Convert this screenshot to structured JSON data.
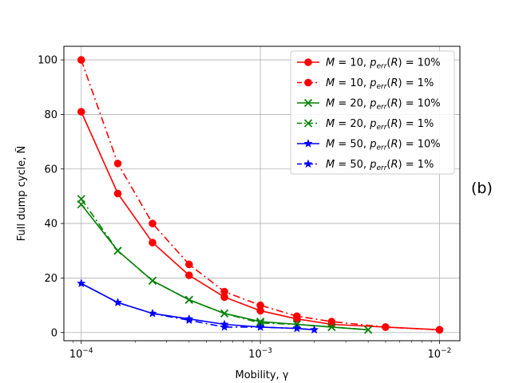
{
  "chart_data": {
    "type": "line",
    "xlabel": "Mobility, γ",
    "ylabel": "Full dump cycle, Ñ",
    "xscale": "log",
    "xlim": [
      8e-05,
      0.013
    ],
    "ylim": [
      -3,
      105
    ],
    "yticks": [
      0,
      20,
      40,
      60,
      80,
      100
    ],
    "xticks": [
      {
        "value": 0.0001,
        "base": "10",
        "exp": "−4"
      },
      {
        "value": 0.001,
        "base": "10",
        "exp": "−3"
      },
      {
        "value": 0.01,
        "base": "10",
        "exp": "−2"
      }
    ],
    "grid": true,
    "legend_position": "top-right",
    "panel_label": "(b)",
    "series": [
      {
        "name": "M = 10, p_err(R) = 10%",
        "legend": {
          "M": "10",
          "p": "10%"
        },
        "color": "#ff0000",
        "marker": "circle",
        "linestyle": "solid",
        "x": [
          0.0001,
          0.00016,
          0.00025,
          0.0004,
          0.00063,
          0.001,
          0.0016,
          0.0025,
          0.005,
          0.01
        ],
        "y": [
          81,
          51,
          33,
          21,
          13,
          8,
          5,
          3,
          2,
          1
        ]
      },
      {
        "name": "M = 10, p_err(R) = 1%",
        "legend": {
          "M": "10",
          "p": "1%"
        },
        "color": "#ff0000",
        "marker": "circle",
        "linestyle": "dashdot",
        "x": [
          0.0001,
          0.00016,
          0.00025,
          0.0004,
          0.00063,
          0.001,
          0.0016,
          0.0025,
          0.005,
          0.01
        ],
        "y": [
          100,
          62,
          40,
          25,
          15,
          10,
          6,
          4,
          2,
          1
        ]
      },
      {
        "name": "M = 20, p_err(R) = 10%",
        "legend": {
          "M": "20",
          "p": "10%"
        },
        "color": "#008000",
        "marker": "x",
        "linestyle": "solid",
        "x": [
          0.0001,
          0.00016,
          0.00025,
          0.0004,
          0.00063,
          0.001,
          0.0016,
          0.0025,
          0.004
        ],
        "y": [
          47,
          30,
          19,
          12,
          7,
          4,
          3,
          2,
          1
        ]
      },
      {
        "name": "M = 20, p_err(R) = 1%",
        "legend": {
          "M": "20",
          "p": "1%"
        },
        "color": "#008000",
        "marker": "x",
        "linestyle": "dashdot",
        "x": [
          0.0001,
          0.00016,
          0.00025,
          0.0004,
          0.00063,
          0.001,
          0.0016,
          0.0025,
          0.004
        ],
        "y": [
          49,
          30,
          19,
          12,
          7,
          3.5,
          3,
          2,
          1
        ]
      },
      {
        "name": "M = 50, p_err(R) = 10%",
        "legend": {
          "M": "50",
          "p": "10%"
        },
        "color": "#0000ff",
        "marker": "star",
        "linestyle": "solid",
        "x": [
          0.0001,
          0.00016,
          0.00025,
          0.0004,
          0.00063,
          0.001,
          0.0016,
          0.002
        ],
        "y": [
          18,
          11,
          7,
          5,
          3,
          2,
          1.5,
          1
        ]
      },
      {
        "name": "M = 50, p_err(R) = 1%",
        "legend": {
          "M": "50",
          "p": "1%"
        },
        "color": "#0000ff",
        "marker": "star",
        "linestyle": "dashdot",
        "x": [
          0.0001,
          0.00016,
          0.00025,
          0.0004,
          0.00063,
          0.001,
          0.0016,
          0.002
        ],
        "y": [
          18,
          11,
          7,
          4.5,
          2,
          2,
          1.5,
          1
        ]
      }
    ]
  }
}
